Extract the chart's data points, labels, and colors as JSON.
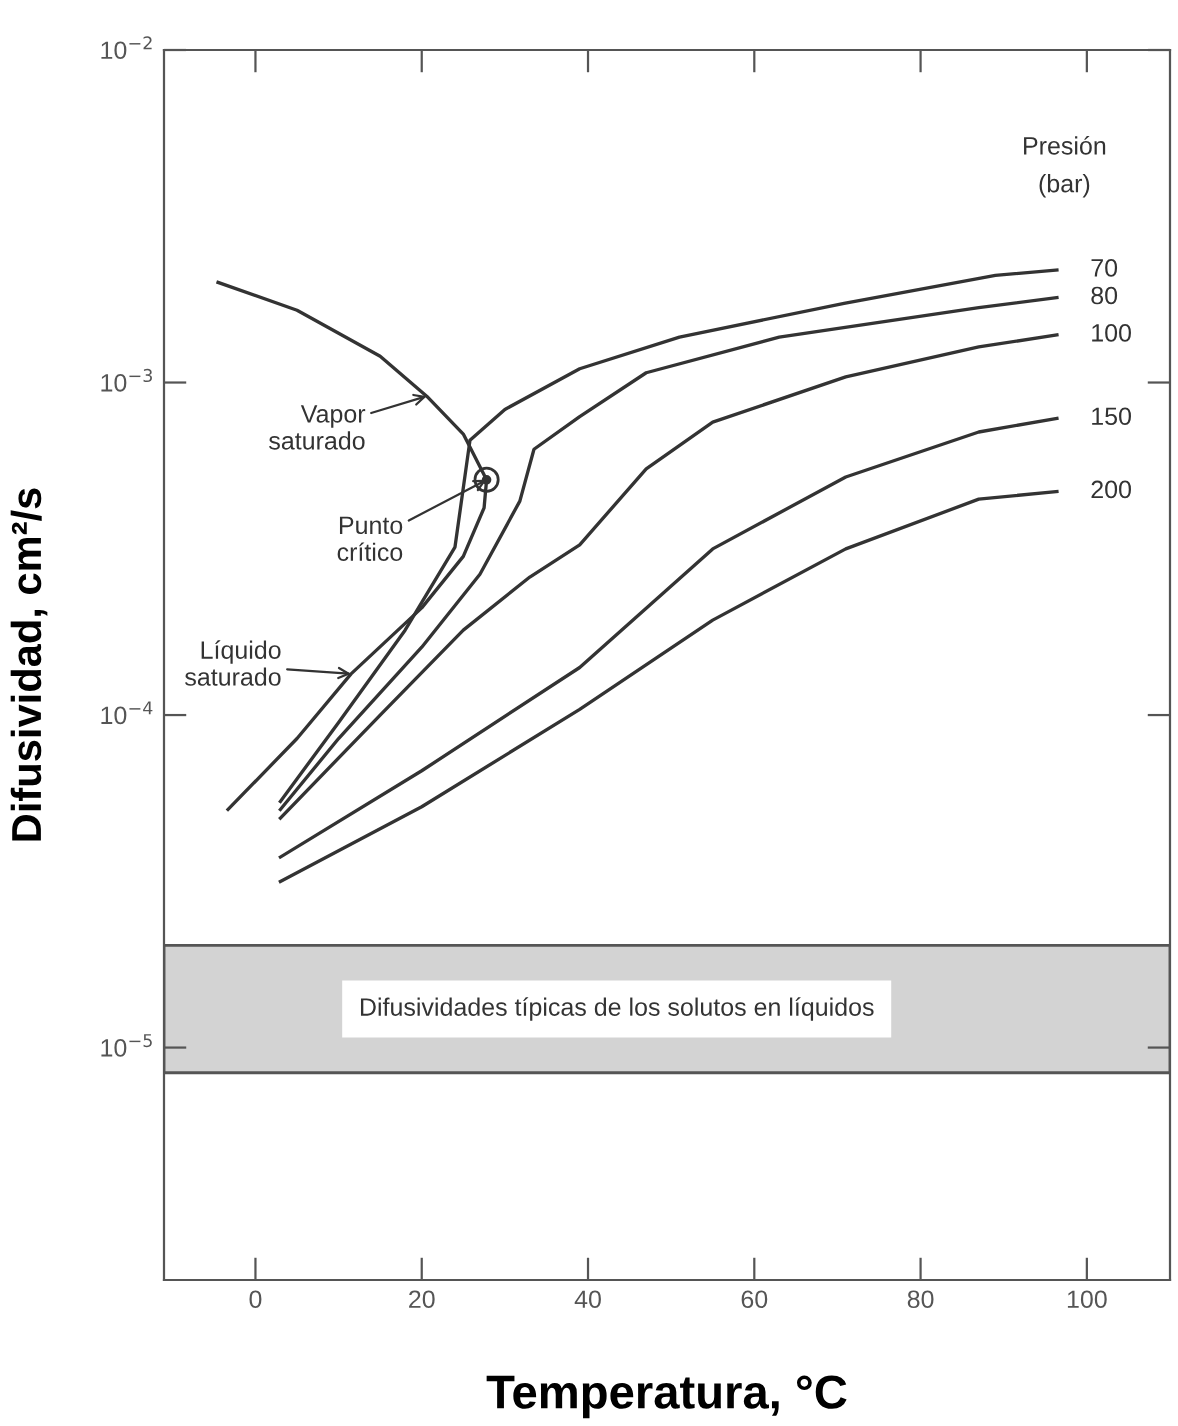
{
  "chart_data": {
    "type": "line",
    "xlabel": "Temperatura, °C",
    "ylabel": "Difusividad, cm²/s",
    "log": "y",
    "grid": false,
    "xlim": [
      -11,
      110
    ],
    "xticks": [
      0,
      20,
      40,
      60,
      80,
      100
    ],
    "ylim": [
      2e-06,
      0.01
    ],
    "yticks": [
      {
        "value": 1e-05,
        "label": "10$^{−5}$"
      },
      {
        "value": 0.0001,
        "label": "10$^{−4}$"
      },
      {
        "value": 0.001,
        "label": "10$^{−3}$"
      },
      {
        "value": 0.01,
        "label": "10$^{−2}$"
      }
    ],
    "series": [
      {
        "color": "#333333",
        "x": [
          -4.5,
          5,
          15,
          20.6,
          25,
          27.8,
          27.5,
          25,
          20,
          11.5,
          5,
          -3.3
        ],
        "values": [
          0.002,
          0.00165,
          0.0012,
          0.00091,
          0.0007,
          0.00051,
          0.00042,
          0.0003,
          0.00021,
          0.000133,
          8.5e-05,
          5.2e-05
        ]
      },
      {
        "name": "70",
        "color": "#333333",
        "x": [
          3,
          10,
          18,
          24,
          25.8,
          30,
          39,
          51,
          70.8,
          89,
          96.4
        ],
        "values": [
          5.5e-05,
          9.5e-05,
          0.00018,
          0.00032,
          0.00067,
          0.00083,
          0.0011,
          0.00137,
          0.00173,
          0.0021,
          0.00218
        ]
      },
      {
        "name": "80",
        "color": "#333333",
        "x": [
          3,
          10,
          20,
          27,
          31.8,
          33.5,
          39,
          47,
          63,
          87,
          96.4
        ],
        "values": [
          5.2e-05,
          8.5e-05,
          0.00016,
          0.000265,
          0.00044,
          0.00063,
          0.00079,
          0.00107,
          0.00137,
          0.00168,
          0.0018
        ]
      },
      {
        "name": "100",
        "color": "#333333",
        "x": [
          3,
          15,
          25,
          33,
          39,
          47,
          55,
          71,
          87,
          96.4
        ],
        "values": [
          4.9e-05,
          0.0001,
          0.00018,
          0.00026,
          0.000325,
          0.00055,
          0.00076,
          0.00104,
          0.00128,
          0.00139
        ]
      },
      {
        "name": "150",
        "color": "#333333",
        "x": [
          3,
          20,
          39,
          55,
          71,
          87,
          96.4
        ],
        "values": [
          3.74e-05,
          6.8e-05,
          0.000139,
          0.000316,
          0.00052,
          0.00071,
          0.00078
        ]
      },
      {
        "name": "200",
        "color": "#333333",
        "x": [
          3,
          20,
          39,
          55,
          71,
          87,
          96.4
        ],
        "values": [
          3.16e-05,
          5.3e-05,
          0.000104,
          0.000193,
          0.000316,
          0.000446,
          0.00047
        ]
      },
      {
        "type": "scatter",
        "marker": "circle",
        "color": "#333333",
        "x": [
          27.8
        ],
        "values": [
          0.00051
        ]
      }
    ],
    "bands": [
      {
        "axis": "y",
        "from": 8.4e-06,
        "to": 2.03e-05,
        "label": "Difusividades típicas de los solutos en líquidos",
        "color": "#d3d3d3"
      }
    ],
    "annotations": [
      {
        "text": "Vapor\nsaturado",
        "x": 20.6,
        "y": 0.00091
      },
      {
        "text": "Punto\ncrítico",
        "x": 27.8,
        "y": 0.00051
      },
      {
        "text": "Líquido\nsaturado",
        "x": 11.5,
        "y": 0.000133
      },
      "Presión\n(bar)"
    ]
  }
}
